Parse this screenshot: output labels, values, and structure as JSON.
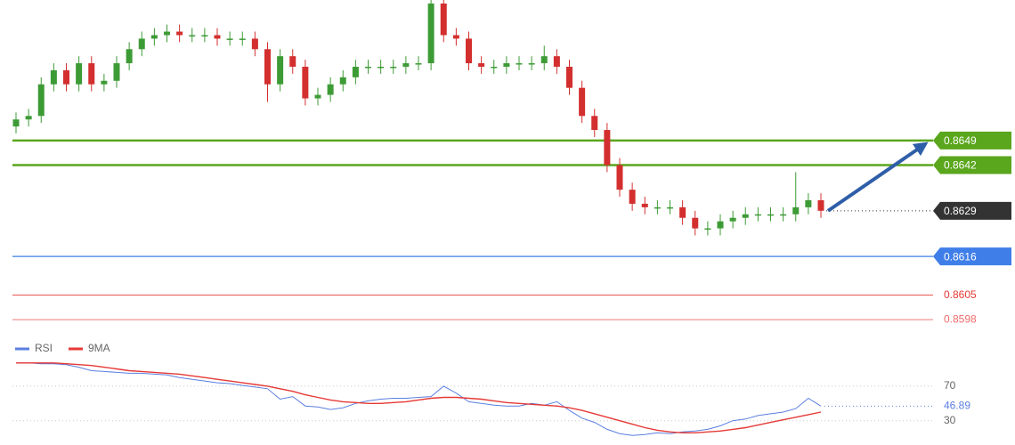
{
  "chart_data": [
    {
      "type": "candlestick",
      "up_color": "#3d9b35",
      "down_color": "#d32f2f",
      "ylim": [
        0.8594,
        0.8689
      ],
      "open": [
        0.8653,
        0.8655,
        0.8656,
        0.8665,
        0.8669,
        0.8665,
        0.8671,
        0.8665,
        0.8666,
        0.8671,
        0.8675,
        0.8678,
        0.8679,
        0.868,
        0.8679,
        0.8679,
        0.8679,
        0.8678,
        0.8678,
        0.8678,
        0.8675,
        0.8665,
        0.8673,
        0.867,
        0.8661,
        0.8662,
        0.8665,
        0.8667,
        0.867,
        0.867,
        0.867,
        0.867,
        0.8671,
        0.8671,
        0.8688,
        0.8679,
        0.8678,
        0.8671,
        0.867,
        0.867,
        0.8671,
        0.8671,
        0.8671,
        0.8673,
        0.867,
        0.8664,
        0.8656,
        0.8652,
        0.8642,
        0.8635,
        0.8631,
        0.863,
        0.863,
        0.863,
        0.8627,
        0.8624,
        0.8624,
        0.8626,
        0.8627,
        0.8628,
        0.8628,
        0.8628,
        0.8628,
        0.863,
        0.8632
      ],
      "high": [
        0.8657,
        0.8658,
        0.8667,
        0.8671,
        0.8671,
        0.8673,
        0.8673,
        0.8668,
        0.8673,
        0.8677,
        0.868,
        0.8681,
        0.8682,
        0.8682,
        0.8681,
        0.8681,
        0.8681,
        0.868,
        0.868,
        0.868,
        0.8677,
        0.8675,
        0.8675,
        0.8672,
        0.8664,
        0.8667,
        0.8669,
        0.8672,
        0.8672,
        0.8672,
        0.8672,
        0.8673,
        0.8673,
        0.869,
        0.8689,
        0.8681,
        0.868,
        0.8673,
        0.8672,
        0.8673,
        0.8673,
        0.8673,
        0.8676,
        0.8675,
        0.8672,
        0.8666,
        0.8658,
        0.8654,
        0.8644,
        0.8637,
        0.8633,
        0.8632,
        0.8632,
        0.8632,
        0.8629,
        0.8626,
        0.8628,
        0.8629,
        0.863,
        0.863,
        0.863,
        0.863,
        0.864,
        0.8634,
        0.8634
      ],
      "low": [
        0.8651,
        0.8653,
        0.8654,
        0.8663,
        0.8663,
        0.8663,
        0.8663,
        0.8663,
        0.8664,
        0.8669,
        0.8673,
        0.8676,
        0.8677,
        0.8677,
        0.8677,
        0.8677,
        0.8676,
        0.8676,
        0.8676,
        0.8673,
        0.866,
        0.8663,
        0.8668,
        0.8659,
        0.8659,
        0.866,
        0.8663,
        0.8665,
        0.8668,
        0.8668,
        0.8668,
        0.8668,
        0.8669,
        0.8669,
        0.8677,
        0.8676,
        0.8669,
        0.8668,
        0.8668,
        0.8668,
        0.8669,
        0.8669,
        0.8669,
        0.8668,
        0.8662,
        0.8654,
        0.865,
        0.864,
        0.8633,
        0.8629,
        0.8628,
        0.8628,
        0.8628,
        0.8625,
        0.8622,
        0.8622,
        0.8622,
        0.8624,
        0.8625,
        0.8626,
        0.8626,
        0.8626,
        0.8626,
        0.8628,
        0.8627
      ],
      "close": [
        0.8655,
        0.8656,
        0.8665,
        0.8669,
        0.8665,
        0.8671,
        0.8665,
        0.8666,
        0.8671,
        0.8675,
        0.8678,
        0.8679,
        0.868,
        0.8679,
        0.8679,
        0.8679,
        0.8678,
        0.8678,
        0.8678,
        0.8675,
        0.8665,
        0.8673,
        0.867,
        0.8661,
        0.8662,
        0.8665,
        0.8667,
        0.867,
        0.867,
        0.867,
        0.867,
        0.8671,
        0.8671,
        0.8688,
        0.8679,
        0.8678,
        0.8671,
        0.867,
        0.867,
        0.8671,
        0.8671,
        0.8671,
        0.8673,
        0.867,
        0.8664,
        0.8656,
        0.8652,
        0.8642,
        0.8635,
        0.8631,
        0.863,
        0.863,
        0.863,
        0.8627,
        0.8624,
        0.8624,
        0.8626,
        0.8627,
        0.8628,
        0.8628,
        0.8628,
        0.8628,
        0.863,
        0.8632,
        0.8629
      ],
      "levels": [
        {
          "value": 0.8649,
          "color": "#5aa61c",
          "style": "box"
        },
        {
          "value": 0.8642,
          "color": "#5aa61c",
          "style": "box"
        },
        {
          "value": 0.8629,
          "color": "#333333",
          "style": "current"
        },
        {
          "value": 0.8616,
          "color": "#3f7ee8",
          "style": "box"
        },
        {
          "value": 0.8605,
          "color": "#e53935",
          "style": "text"
        },
        {
          "value": 0.8598,
          "color": "#ee6b6b",
          "style": "text"
        }
      ]
    },
    {
      "type": "line",
      "ylim": [
        7,
        105
      ],
      "yticks": [
        70,
        30
      ],
      "series": [
        {
          "name": "RSI",
          "color": "#5b7fe0",
          "values": [
            97,
            97,
            96,
            96,
            95,
            92,
            88,
            87,
            86,
            85,
            85,
            84,
            83,
            80,
            78,
            76,
            74,
            73,
            71,
            69,
            67,
            55,
            58,
            47,
            46,
            43,
            45,
            50,
            53,
            55,
            56,
            56,
            57,
            58,
            70,
            62,
            52,
            50,
            48,
            47,
            47,
            50,
            48,
            52,
            42,
            33,
            28,
            20,
            15,
            13,
            14,
            16,
            15,
            17,
            18,
            20,
            24,
            30,
            32,
            36,
            38,
            40,
            44,
            56,
            46.89
          ]
        },
        {
          "name": "9MA",
          "color": "#e53935",
          "values": [
            97,
            97,
            97,
            97,
            96,
            95,
            94,
            92,
            90,
            88,
            87,
            86,
            85,
            84,
            82,
            80,
            78,
            76,
            74,
            72,
            70,
            67,
            64,
            60,
            57,
            54,
            52,
            51,
            50,
            50,
            51,
            52,
            54,
            56,
            57,
            57,
            56,
            55,
            53,
            51,
            50,
            49,
            48,
            47,
            45,
            42,
            38,
            34,
            30,
            26,
            22,
            19,
            17,
            16,
            16,
            17,
            18,
            20,
            22,
            25,
            28,
            31,
            34,
            37,
            40
          ]
        }
      ]
    }
  ]
}
